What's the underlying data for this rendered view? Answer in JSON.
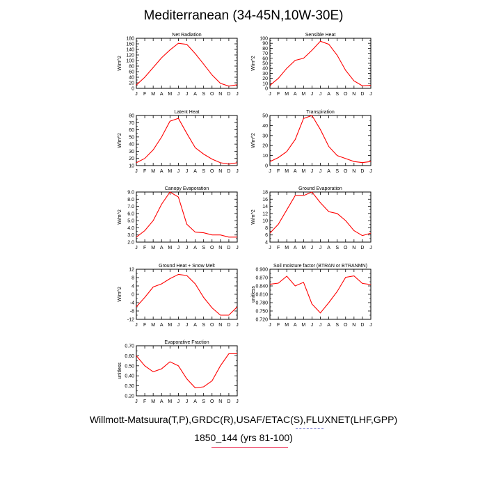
{
  "title": "Mediterranean (34-45N,10W-30E)",
  "footer": {
    "line1": "Willmott-Matsuura(T,P),GRDC(R),USAF/ETAC(S),FLUXNET(LHF,GPP)",
    "line2": "1850_144 (yrs 81-100)"
  },
  "colors": {
    "series": "#ff0000",
    "axis": "#000000"
  },
  "chart_data": [
    {
      "type": "line",
      "title": "Net Radiation",
      "ylabel": "W/m^2",
      "xlabel": "",
      "categories": [
        "J",
        "F",
        "M",
        "A",
        "M",
        "J",
        "J",
        "A",
        "S",
        "O",
        "N",
        "D",
        "J"
      ],
      "yticks": [
        "0",
        "20",
        "40",
        "60",
        "80",
        "100",
        "120",
        "140",
        "160",
        "180"
      ],
      "ylim": [
        0,
        180
      ],
      "values": [
        12,
        40,
        75,
        110,
        138,
        162,
        158,
        125,
        87,
        48,
        18,
        8,
        13
      ]
    },
    {
      "type": "line",
      "title": "Sensible Heat",
      "ylabel": "W/m^2",
      "xlabel": "",
      "categories": [
        "J",
        "F",
        "M",
        "A",
        "M",
        "J",
        "J",
        "A",
        "S",
        "O",
        "N",
        "D",
        "J"
      ],
      "yticks": [
        "0",
        "10",
        "20",
        "30",
        "40",
        "50",
        "60",
        "70",
        "80",
        "90",
        "100"
      ],
      "ylim": [
        0,
        100
      ],
      "values": [
        6,
        20,
        40,
        56,
        60,
        76,
        94,
        88,
        66,
        36,
        15,
        5,
        6
      ]
    },
    {
      "type": "line",
      "title": "Latent Heat",
      "ylabel": "W/m^2",
      "xlabel": "",
      "categories": [
        "J",
        "F",
        "M",
        "A",
        "M",
        "J",
        "J",
        "A",
        "S",
        "O",
        "N",
        "D",
        "J"
      ],
      "yticks": [
        "10",
        "20",
        "30",
        "40",
        "50",
        "60",
        "70",
        "80"
      ],
      "ylim": [
        10,
        80
      ],
      "values": [
        14,
        20,
        32,
        50,
        72,
        76,
        55,
        35,
        26,
        19,
        14,
        12,
        14
      ]
    },
    {
      "type": "line",
      "title": "Transpiration",
      "ylabel": "W/m^2",
      "xlabel": "",
      "categories": [
        "J",
        "F",
        "M",
        "A",
        "M",
        "J",
        "J",
        "A",
        "S",
        "O",
        "N",
        "D",
        "J"
      ],
      "yticks": [
        "0",
        "10",
        "20",
        "30",
        "40",
        "50"
      ],
      "ylim": [
        0,
        50
      ],
      "values": [
        4,
        8,
        14,
        26,
        47,
        50,
        36,
        19,
        10,
        7,
        4,
        3,
        4
      ]
    },
    {
      "type": "line",
      "title": "Canopy Evaporation",
      "ylabel": "W/m^2",
      "xlabel": "",
      "categories": [
        "J",
        "F",
        "M",
        "A",
        "M",
        "J",
        "J",
        "A",
        "S",
        "O",
        "N",
        "D",
        "J"
      ],
      "yticks": [
        "2.0",
        "3.0",
        "4.0",
        "5.0",
        "6.0",
        "7.0",
        "8.0",
        "9.0"
      ],
      "ylim": [
        2,
        9
      ],
      "values": [
        2.7,
        3.6,
        5.0,
        7.3,
        9.0,
        8.3,
        4.5,
        3.4,
        3.3,
        3.0,
        3.0,
        2.7,
        2.7
      ]
    },
    {
      "type": "line",
      "title": "Ground Evaporation",
      "ylabel": "W/m^2",
      "xlabel": "",
      "categories": [
        "J",
        "F",
        "M",
        "A",
        "M",
        "J",
        "J",
        "A",
        "S",
        "O",
        "N",
        "D",
        "J"
      ],
      "yticks": [
        "4",
        "6",
        "8",
        "10",
        "12",
        "14",
        "16",
        "18"
      ],
      "ylim": [
        4,
        18
      ],
      "values": [
        6.5,
        9,
        13,
        17,
        17,
        18,
        15,
        12.5,
        12,
        10,
        7.2,
        5.8,
        6.5
      ]
    },
    {
      "type": "line",
      "title": "Ground Heat + Snow Melt",
      "ylabel": "W/m^2",
      "xlabel": "",
      "categories": [
        "J",
        "F",
        "M",
        "A",
        "M",
        "J",
        "J",
        "A",
        "S",
        "O",
        "N",
        "D",
        "J"
      ],
      "yticks": [
        "-12",
        "-8",
        "-4",
        "0",
        "4",
        "8",
        "12"
      ],
      "ylim": [
        -12,
        12
      ],
      "values": [
        -6,
        -1.5,
        3.5,
        5,
        7.5,
        9.5,
        9,
        5,
        -1.5,
        -6.5,
        -10,
        -10,
        -6
      ]
    },
    {
      "type": "line",
      "title": "Soil moisture factor (BTRAN or BTRANMN)",
      "ylabel": "unitless",
      "xlabel": "",
      "categories": [
        "J",
        "F",
        "M",
        "A",
        "M",
        "J",
        "J",
        "A",
        "S",
        "O",
        "N",
        "D",
        "J"
      ],
      "yticks": [
        "0.720",
        "0.750",
        "0.780",
        "0.810",
        "0.840",
        "0.870",
        "0.900"
      ],
      "ylim": [
        0.72,
        0.9
      ],
      "values": [
        0.846,
        0.85,
        0.875,
        0.84,
        0.853,
        0.775,
        0.743,
        0.78,
        0.82,
        0.871,
        0.876,
        0.849,
        0.845
      ]
    },
    {
      "type": "line",
      "title": "Evaporative Fraction",
      "ylabel": "unitless",
      "xlabel": "",
      "categories": [
        "J",
        "F",
        "M",
        "A",
        "M",
        "J",
        "J",
        "A",
        "S",
        "O",
        "N",
        "D",
        "J"
      ],
      "yticks": [
        "0.20",
        "0.30",
        "0.40",
        "0.50",
        "0.60",
        "0.70"
      ],
      "ylim": [
        0.2,
        0.7
      ],
      "values": [
        0.6,
        0.5,
        0.44,
        0.47,
        0.54,
        0.5,
        0.37,
        0.28,
        0.29,
        0.35,
        0.5,
        0.62,
        0.62
      ]
    }
  ]
}
